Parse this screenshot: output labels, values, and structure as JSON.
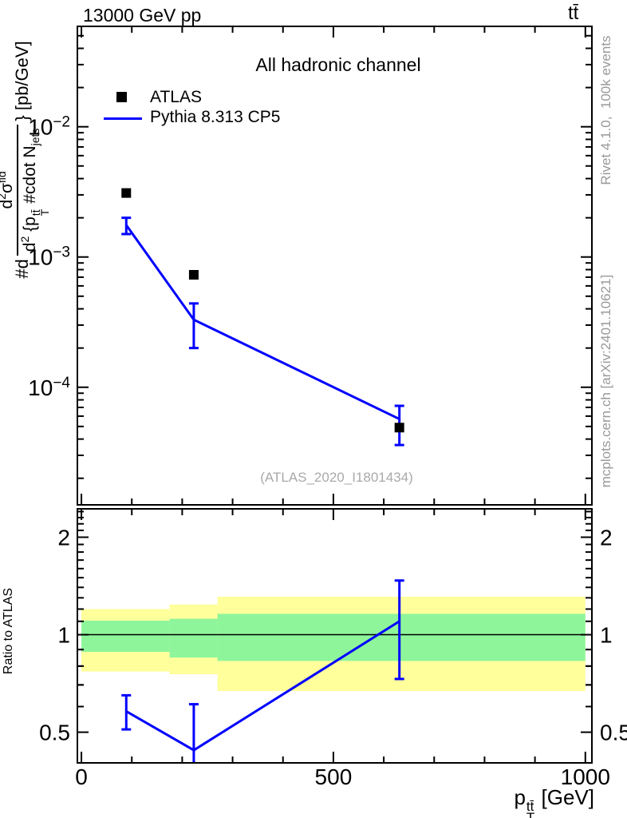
{
  "header": {
    "energy_title": "13000 GeV pp",
    "process_title": "tt̄"
  },
  "right_margin": {
    "generator_info": "Rivet 4.1.0,  100k events",
    "source_info": "mcplots.cern.ch [arXiv:2401.10621]"
  },
  "main_panel": {
    "channel_label": "All hadronic channel",
    "watermark": "(ATLAS_2020_I1801434)",
    "legend": [
      {
        "label": "ATLAS",
        "marker": "black-square"
      },
      {
        "label": "Pythia 8.313 CP5",
        "marker": "blue-line"
      }
    ],
    "ylabel": {
      "prefix": "#d",
      "numerator": {
        "d": "d",
        "d_exp": "2",
        "sigma": "σ",
        "sigma_exp": "fid"
      },
      "denominator": {
        "d": "d",
        "d_exp": "2",
        "open": " {p",
        "p_sup": "tt̄",
        "p_sub": "T",
        "cdot": " #cdot N",
        "n_sub": "jets"
      },
      "suffix": "} [pb/GeV]"
    }
  },
  "ratio_panel": {
    "ylabel": "Ratio to ATLAS"
  },
  "xaxis": {
    "label": {
      "p": "p",
      "sup": "tt̄",
      "sub": "T",
      "unit": " [GeV]"
    }
  },
  "colors": {
    "accent_blue": "#0000ff",
    "marker_black": "#000000",
    "band_yellow": "#ffff9c",
    "band_green": "#8ef59b",
    "frame_black": "#000000",
    "note_gray": "#999999",
    "watermark_gray": "#a9a9a9"
  },
  "chart_data": [
    {
      "type": "line",
      "title": "All hadronic channel",
      "xlabel": "p_T^tt̄ [GeV]",
      "ylabel": "#d d²σ^fid / d² {p_T^tt̄ #cdot N_jets} [pb/GeV]",
      "xscale": "linear",
      "yscale": "log",
      "xlim": [
        -8,
        1013
      ],
      "ylim": [
        1.25e-05,
        0.059
      ],
      "xticks": [
        0,
        500,
        1000
      ],
      "xminor_step": 100,
      "ytick_labels_exp": [
        -2,
        -3,
        -4
      ],
      "grid": false,
      "legend_position": "upper-left",
      "series": [
        {
          "name": "ATLAS",
          "style": "scatter",
          "marker": "filled-square",
          "color": "#000000",
          "x": [
            89,
            223,
            631
          ],
          "y": [
            0.0031,
            0.00073,
            4.9e-05
          ]
        },
        {
          "name": "Pythia 8.313 CP5",
          "style": "line",
          "color": "#0000ff",
          "x": [
            89,
            223,
            631
          ],
          "y": [
            0.00176,
            0.00033,
            5.7e-05
          ],
          "y_lo": [
            0.0015,
            0.0002,
            3.6e-05
          ],
          "y_hi": [
            0.002,
            0.00044,
            7.2e-05
          ]
        }
      ]
    },
    {
      "type": "ratio-line",
      "title": "Ratio to ATLAS",
      "yscale": "log",
      "xlim": [
        -8,
        1013
      ],
      "ylim": [
        0.402,
        2.447
      ],
      "xticks": [
        0,
        500,
        1000
      ],
      "xminor_step": 100,
      "yticks": [
        0.5,
        1,
        2
      ],
      "yminor_ticks": [
        0.6,
        0.7,
        0.8,
        0.9,
        1.1,
        1.2,
        1.3,
        1.4,
        1.5,
        1.6,
        1.7,
        1.8,
        1.9,
        2.1,
        2.2,
        2.3,
        2.4
      ],
      "reference_line": 1,
      "uncertainty_bands": {
        "bin_edges": [
          0,
          175,
          270,
          1000
        ],
        "yellow_total": [
          [
            0.77,
            1.2
          ],
          [
            0.755,
            1.24
          ],
          [
            0.67,
            1.31
          ]
        ],
        "green_stat": [
          [
            0.885,
            1.105
          ],
          [
            0.85,
            1.12
          ],
          [
            0.83,
            1.16
          ]
        ]
      },
      "series": [
        {
          "name": "Pythia 8.313 CP5 / ATLAS",
          "color": "#0000ff",
          "x": [
            89,
            223,
            631
          ],
          "y": [
            0.58,
            0.44,
            1.1
          ],
          "y_lo": [
            0.51,
            0.35,
            0.73
          ],
          "y_hi": [
            0.65,
            0.61,
            1.47
          ]
        }
      ]
    }
  ]
}
